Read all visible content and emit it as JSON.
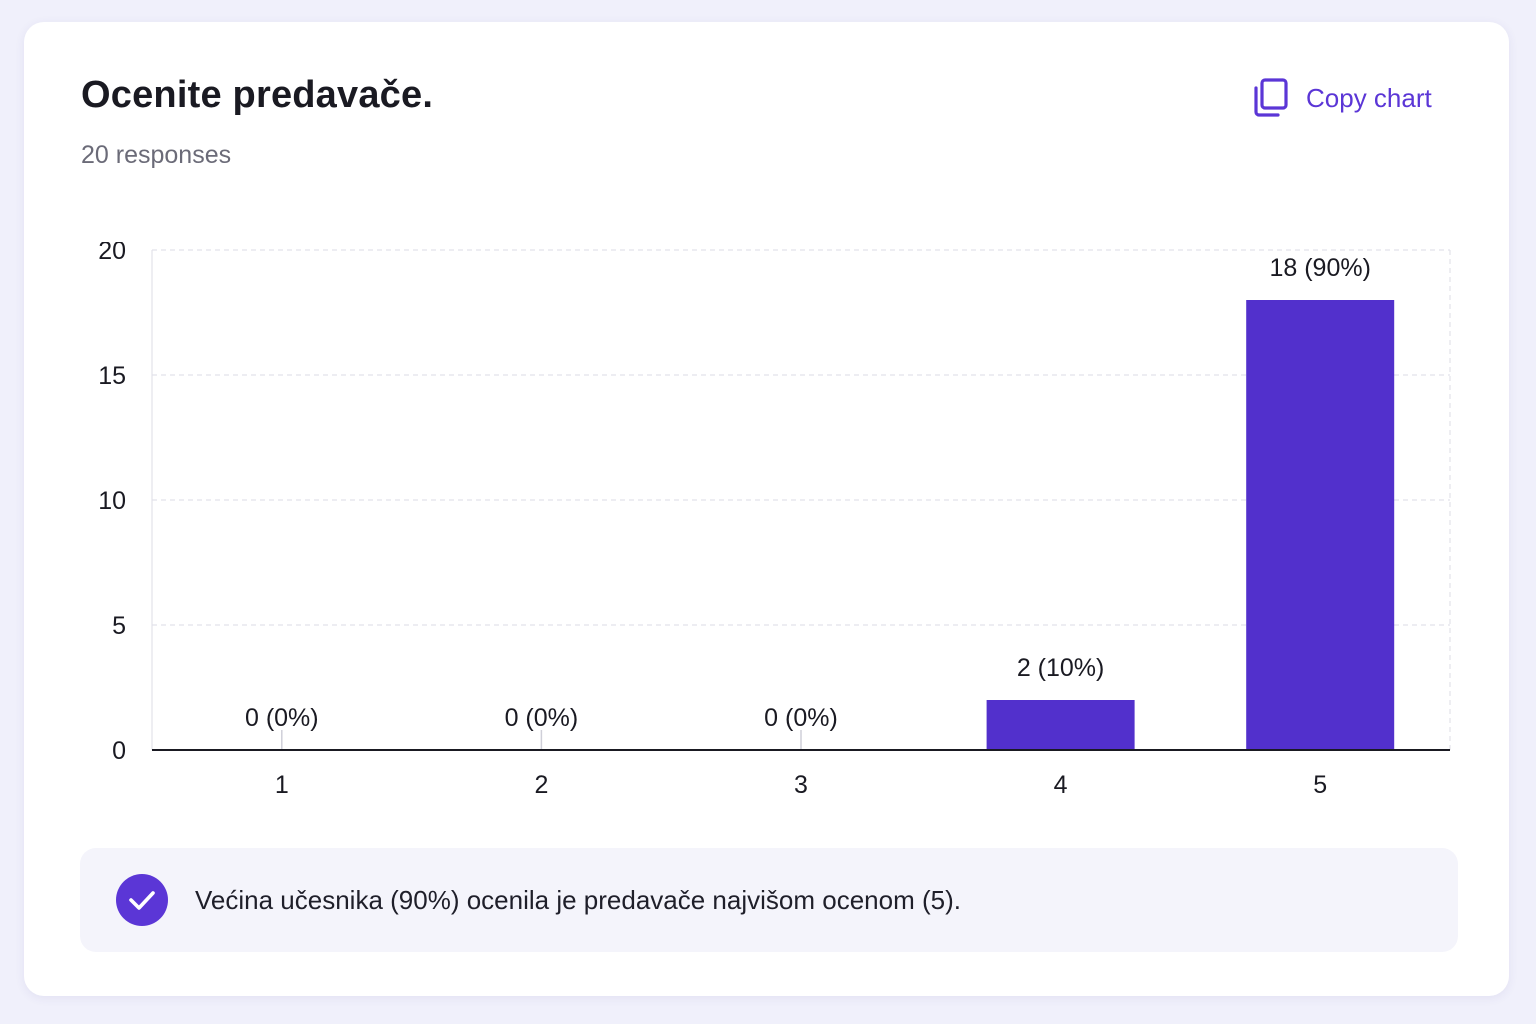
{
  "question": {
    "title": "Ocenite predavače.",
    "responses_label": "20 responses"
  },
  "toolbar": {
    "copy_label": "Copy chart",
    "copy_icon": "copy-icon"
  },
  "colors": {
    "accent": "#5b36d6",
    "bar": "#5230cc",
    "grid": "#e2e2ea",
    "axis": "#1a1a22",
    "text": "#1a1a22"
  },
  "chart_data": {
    "type": "bar",
    "categories": [
      "1",
      "2",
      "3",
      "4",
      "5"
    ],
    "values": [
      0,
      0,
      0,
      2,
      18
    ],
    "data_labels": [
      "0 (0%)",
      "0 (0%)",
      "0 (0%)",
      "2 (10%)",
      "18 (90%)"
    ],
    "ylim": [
      0,
      20
    ],
    "yticks": [
      0,
      5,
      10,
      15,
      20
    ],
    "grid": true,
    "legend": "none"
  },
  "insight": {
    "icon": "check-circle-icon",
    "text": "Većina učesnika (90%) ocenila je predavače najvišom ocenom (5)."
  }
}
